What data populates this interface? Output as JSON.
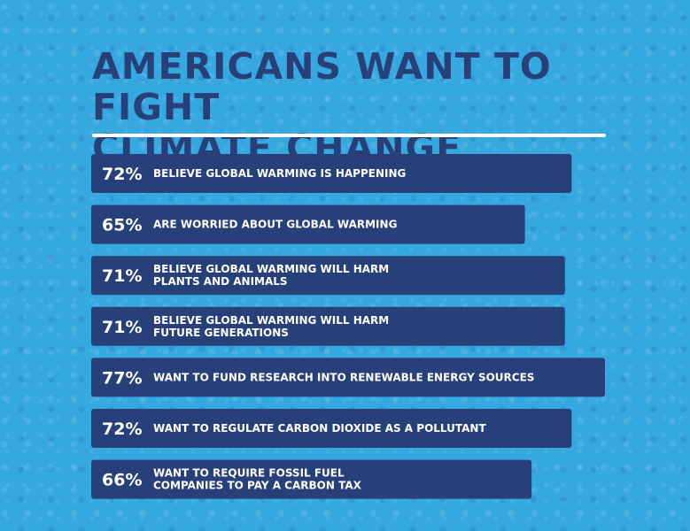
{
  "title_lines": [
    "Americans want to fight",
    "climate change"
  ],
  "colors": {
    "background": "#36a8e0",
    "title": "#27407a",
    "bar": "#27407a",
    "bar_text": "#ffffff",
    "rule": "#ffffff"
  },
  "chart_data": {
    "type": "bar",
    "orientation": "horizontal",
    "title": "AMERICANS WANT TO FIGHT CLIMATE CHANGE",
    "unit": "%",
    "xlim": [
      0,
      77
    ],
    "categories": [
      [
        "BELIEVE GLOBAL WARMING IS HAPPENING"
      ],
      [
        "ARE WORRIED ABOUT GLOBAL WARMING"
      ],
      [
        "BELIEVE GLOBAL WARMING WILL HARM",
        "PLANTS AND ANIMALS"
      ],
      [
        "BELIEVE GLOBAL WARMING WILL HARM",
        "FUTURE GENERATIONS"
      ],
      [
        "WANT TO FUND RESEARCH INTO RENEWABLE ENERGY SOURCES"
      ],
      [
        "WANT TO REGULATE CARBON DIOXIDE AS A POLLUTANT"
      ],
      [
        "WANT TO REQUIRE FOSSIL FUEL",
        "COMPANIES TO PAY A CARBON TAX"
      ]
    ],
    "values": [
      72,
      65,
      71,
      71,
      77,
      72,
      66
    ],
    "value_labels": [
      "72%",
      "65%",
      "71%",
      "71%",
      "77%",
      "72%",
      "66%"
    ],
    "grid": false,
    "legend": "none"
  }
}
